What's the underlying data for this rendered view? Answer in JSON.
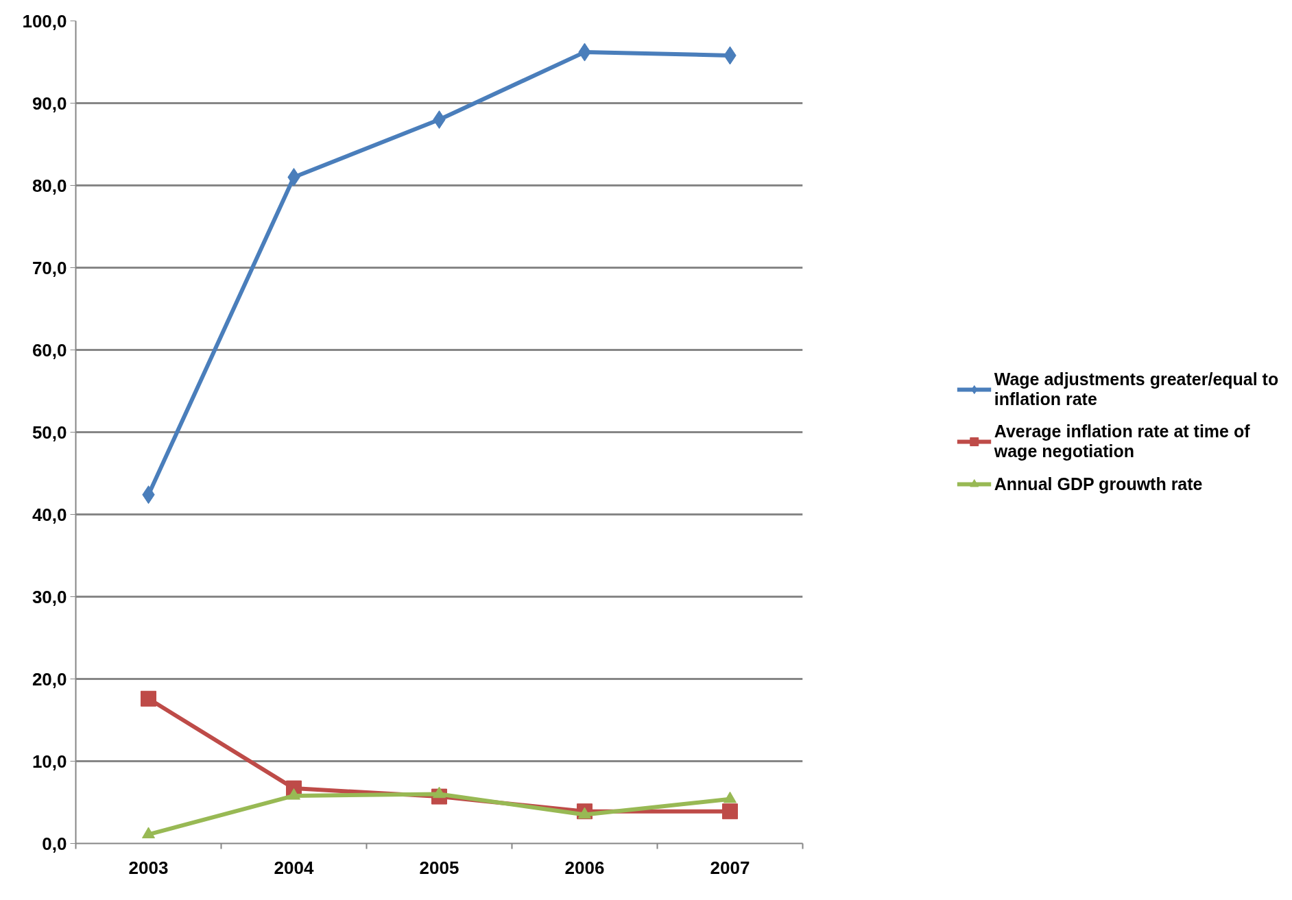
{
  "chart_data": {
    "type": "line",
    "categories": [
      "2003",
      "2004",
      "2005",
      "2006",
      "2007"
    ],
    "series": [
      {
        "name": "Wage adjustments greater/equal to inflation rate",
        "color": "#4a7ebb",
        "marker": "diamond",
        "values": [
          42.4,
          81.0,
          88.0,
          96.2,
          95.8
        ]
      },
      {
        "name": "Average inflation rate at time of wage negotiation",
        "color": "#be4b48",
        "marker": "square",
        "values": [
          17.6,
          6.7,
          5.7,
          3.9,
          3.9
        ]
      },
      {
        "name": "Annual GDP grouwth rate",
        "color": "#98b954",
        "marker": "triangle",
        "values": [
          1.1,
          5.8,
          6.0,
          3.5,
          5.4
        ]
      }
    ],
    "ylim": [
      0,
      100
    ],
    "yticks": [
      {
        "value": 0,
        "label": "0,0"
      },
      {
        "value": 10,
        "label": "10,0"
      },
      {
        "value": 20,
        "label": "20,0"
      },
      {
        "value": 30,
        "label": "30,0"
      },
      {
        "value": 40,
        "label": "40,0"
      },
      {
        "value": 50,
        "label": "50,0"
      },
      {
        "value": 60,
        "label": "60,0"
      },
      {
        "value": 70,
        "label": "70,0"
      },
      {
        "value": 80,
        "label": "80,0"
      },
      {
        "value": 90,
        "label": "90,0"
      },
      {
        "value": 100,
        "label": "100,0"
      }
    ],
    "grid": "y",
    "legend": "right"
  }
}
